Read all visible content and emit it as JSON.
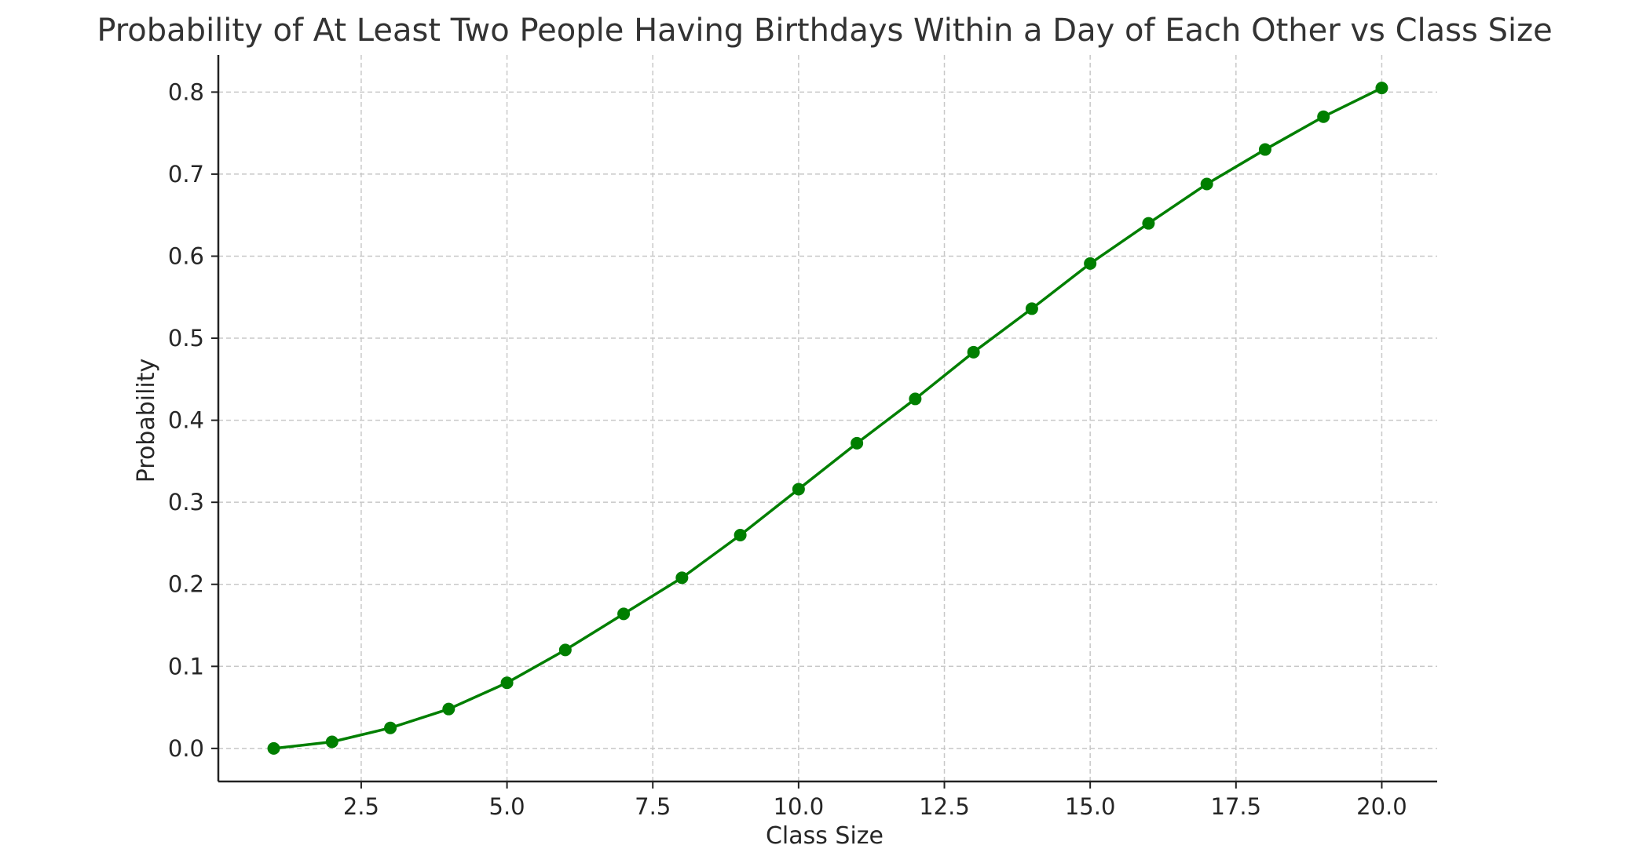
{
  "chart_data": {
    "type": "line",
    "title": "Probability of At Least Two People Having Birthdays Within a Day of Each Other vs Class Size",
    "xlabel": "Class Size",
    "ylabel": "Probability",
    "x": [
      1,
      2,
      3,
      4,
      5,
      6,
      7,
      8,
      9,
      10,
      11,
      12,
      13,
      14,
      15,
      16,
      17,
      18,
      19,
      20
    ],
    "series": [
      {
        "values": [
          0.0,
          0.008,
          0.025,
          0.048,
          0.08,
          0.12,
          0.164,
          0.208,
          0.26,
          0.316,
          0.372,
          0.426,
          0.483,
          0.536,
          0.591,
          0.64,
          0.688,
          0.73,
          0.77,
          0.805
        ]
      }
    ],
    "xlim": [
      0.05,
      20.95
    ],
    "ylim": [
      -0.0403,
      0.8453
    ],
    "x_ticks": [
      {
        "value": 2.5,
        "label": "2.5"
      },
      {
        "value": 5.0,
        "label": "5.0"
      },
      {
        "value": 7.5,
        "label": "7.5"
      },
      {
        "value": 10.0,
        "label": "10.0"
      },
      {
        "value": 12.5,
        "label": "12.5"
      },
      {
        "value": 15.0,
        "label": "15.0"
      },
      {
        "value": 17.5,
        "label": "17.5"
      },
      {
        "value": 20.0,
        "label": "20.0"
      }
    ],
    "y_ticks": [
      {
        "value": 0.0,
        "label": "0.0"
      },
      {
        "value": 0.1,
        "label": "0.1"
      },
      {
        "value": 0.2,
        "label": "0.2"
      },
      {
        "value": 0.3,
        "label": "0.3"
      },
      {
        "value": 0.4,
        "label": "0.4"
      },
      {
        "value": 0.5,
        "label": "0.5"
      },
      {
        "value": 0.6,
        "label": "0.6"
      },
      {
        "value": 0.7,
        "label": "0.7"
      },
      {
        "value": 0.8,
        "label": "0.8"
      }
    ],
    "grid": true,
    "line_color": "#007f00",
    "marker_color": "#007f00",
    "grid_color": "#c8c8c8",
    "axis_color": "#222222",
    "text_color": "#262626",
    "title_color": "#333333"
  }
}
